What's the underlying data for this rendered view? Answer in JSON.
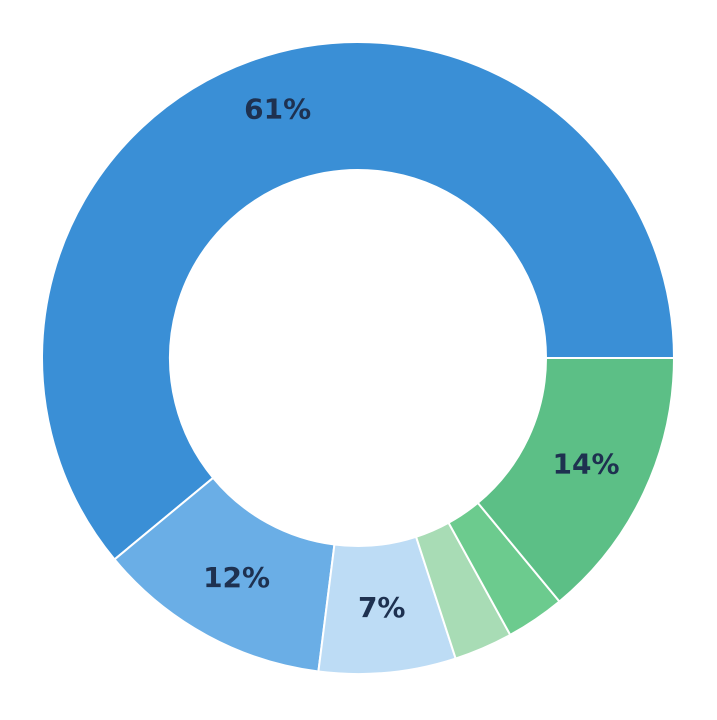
{
  "chart_data": {
    "type": "donut",
    "values": [
      61,
      12,
      7,
      3,
      3,
      14
    ],
    "value_labels": [
      "61%",
      "12%",
      "7%",
      null,
      null,
      "14%"
    ],
    "colors": [
      "#3a8fd6",
      "#6aaee6",
      "#bddcf5",
      "#a8dcb5",
      "#6ccb8e",
      "#5cbf86"
    ]
  }
}
